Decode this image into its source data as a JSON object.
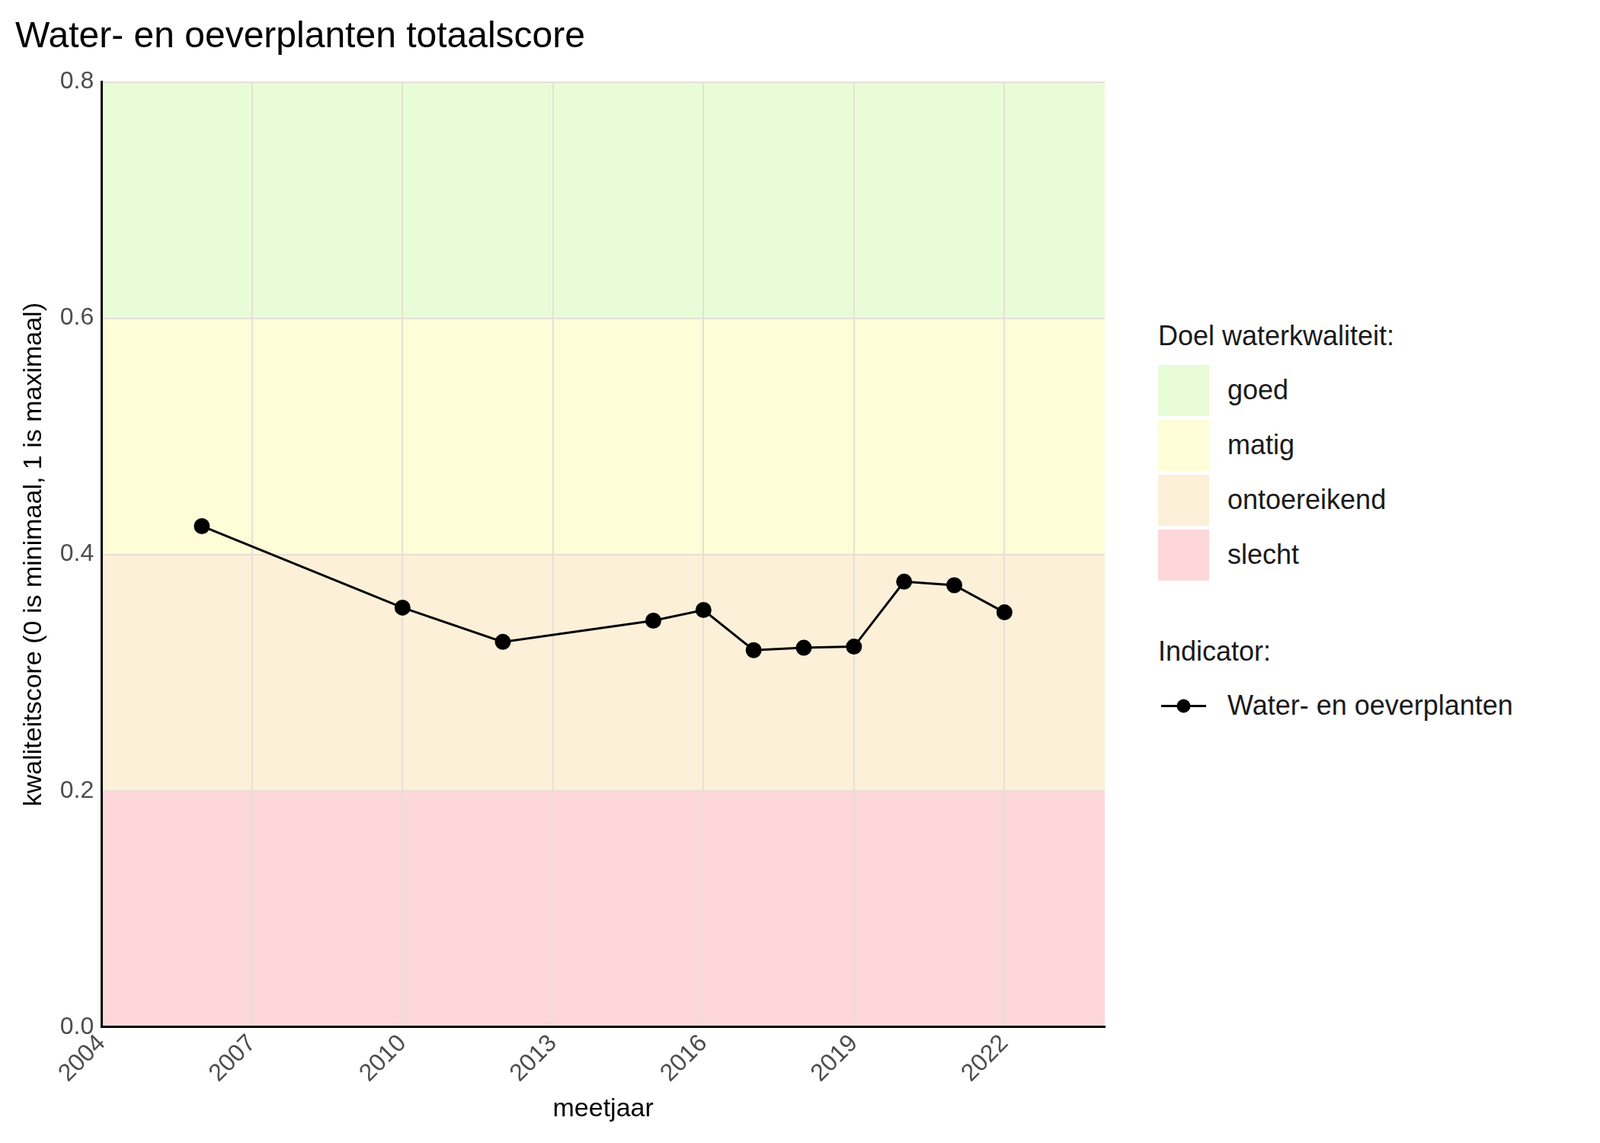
{
  "chart_data": {
    "type": "line",
    "title": "Water- en oeverplanten totaalscore",
    "x_label": "meetjaar",
    "y_label": "kwaliteitscore (0 is minimaal, 1 is maximaal)",
    "x": [
      2006,
      2010,
      2012,
      2015,
      2016,
      2017,
      2018,
      2019,
      2020,
      2021,
      2022
    ],
    "series": [
      {
        "name": "Water- en oeverplanten",
        "color": "#000000",
        "marker": "circle",
        "values": [
          0.424,
          0.355,
          0.326,
          0.344,
          0.353,
          0.319,
          0.321,
          0.322,
          0.377,
          0.374,
          0.351
        ]
      }
    ],
    "xlim": [
      2004,
      2024
    ],
    "xticks": [
      2004,
      2007,
      2010,
      2013,
      2016,
      2019,
      2022
    ],
    "ylim": [
      0,
      0.8
    ],
    "yticks": [
      {
        "value": 0,
        "label": "0.0"
      },
      0.2,
      0.4,
      0.6,
      0.8
    ],
    "grid": true,
    "legend": "right",
    "bands_title": "Doel waterkwaliteit:",
    "legend_title": "Indicator:",
    "bands": [
      {
        "name": "goed",
        "from": 0.6,
        "to": 0.8,
        "color": "#e8fcd8"
      },
      {
        "name": "matig",
        "from": 0.4,
        "to": 0.6,
        "color": "#fefdd8"
      },
      {
        "name": "ontoereikend",
        "from": 0.2,
        "to": 0.4,
        "color": "#fdf0d9"
      },
      {
        "name": "slecht",
        "from": 0,
        "to": 0.2,
        "color": "#fdd7d9"
      }
    ]
  }
}
